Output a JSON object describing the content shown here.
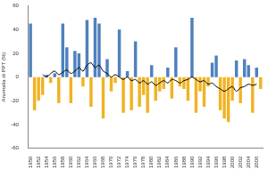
{
  "chart_data": {
    "type": "bar",
    "y_label": "Anomalia di PPT (%)",
    "categories": [
      "1950",
      null,
      "1952",
      null,
      "1954",
      null,
      "1956",
      null,
      "1958",
      null,
      "1960",
      null,
      "1962",
      null,
      "1964",
      null,
      "1966",
      null,
      "1968",
      null,
      "1970",
      null,
      "1972",
      null,
      "1974",
      null,
      "1976",
      null,
      "1978",
      null,
      "1980",
      null,
      "1982",
      null,
      "1984",
      null,
      "1986",
      null,
      "1988",
      null,
      "1990",
      null,
      "1992",
      null,
      "1994",
      null,
      "1996",
      null,
      "1998",
      null,
      "2000",
      null,
      "2002",
      null,
      "2004",
      null,
      "2006",
      null
    ],
    "series": [
      {
        "type": "bar",
        "colors": [
          "#4f81bd",
          "#f0b323",
          "#f0b323",
          "#f0b323",
          "#4f81bd",
          "#f0b323",
          "#4f81bd",
          "#f0b323",
          "#4f81bd",
          "#4f81bd",
          "#f0b323",
          "#4f81bd",
          "#4f81bd",
          "#f0b323",
          "#4f81bd",
          "#f0b323",
          "#4f81bd",
          "#4f81bd",
          "#f0b323",
          "#4f81bd",
          "#f0b323",
          "#f0b323",
          "#4f81bd",
          "#f0b323",
          "#4f81bd",
          "#f0b323",
          "#4f81bd",
          "#f0b323",
          "#f0b323",
          "#f0b323",
          "#4f81bd",
          "#f0b323",
          "#f0b323",
          "#f0b323",
          "#4f81bd",
          "#f0b323",
          "#4f81bd",
          "#f0b323",
          "#f0b323",
          "#f0b323",
          "#4f81bd",
          "#f0b323",
          "#f0b323",
          "#f0b323",
          "#f0b323",
          "#4f81bd",
          "#4f81bd",
          "#f0b323",
          "#f0b323",
          "#f0b323",
          "#f0b323",
          "#4f81bd",
          "#f0b323",
          "#4f81bd",
          "#4f81bd",
          "#f0b323",
          "#4f81bd",
          "#f0b323"
        ],
        "values": [
          45,
          -28,
          -20,
          -15,
          2,
          -5,
          3,
          -22,
          45,
          25,
          -22,
          22,
          20,
          -8,
          48,
          -25,
          50,
          45,
          -35,
          15,
          -12,
          -5,
          40,
          -30,
          5,
          -28,
          30,
          -25,
          -15,
          -30,
          10,
          -20,
          -12,
          -10,
          8,
          -18,
          25,
          -8,
          -10,
          -20,
          50,
          -30,
          -12,
          -25,
          -8,
          12,
          18,
          -28,
          -35,
          -38,
          -20,
          14,
          -22,
          15,
          10,
          -30,
          8,
          -10
        ]
      },
      {
        "type": "line",
        "color": "#000000",
        "marker": "none",
        "values": [
          null,
          null,
          null,
          2,
          0,
          3,
          5,
          2,
          4,
          6,
          3,
          5,
          8,
          5,
          10,
          12,
          8,
          10,
          5,
          3,
          0,
          2,
          0,
          -2,
          0,
          -3,
          -2,
          -5,
          -3,
          -6,
          -4,
          -7,
          -5,
          -3,
          -5,
          -2,
          -3,
          -5,
          -3,
          -2,
          0,
          -2,
          -4,
          -3,
          -6,
          -5,
          -8,
          -10,
          -12,
          -10,
          -8,
          -12,
          -9,
          -8,
          -6,
          -7,
          -6,
          null
        ]
      }
    ],
    "ylim": [
      -60,
      60
    ],
    "yticks": [
      -60,
      -40,
      -20,
      0,
      20,
      40,
      60
    ],
    "grid": false
  }
}
